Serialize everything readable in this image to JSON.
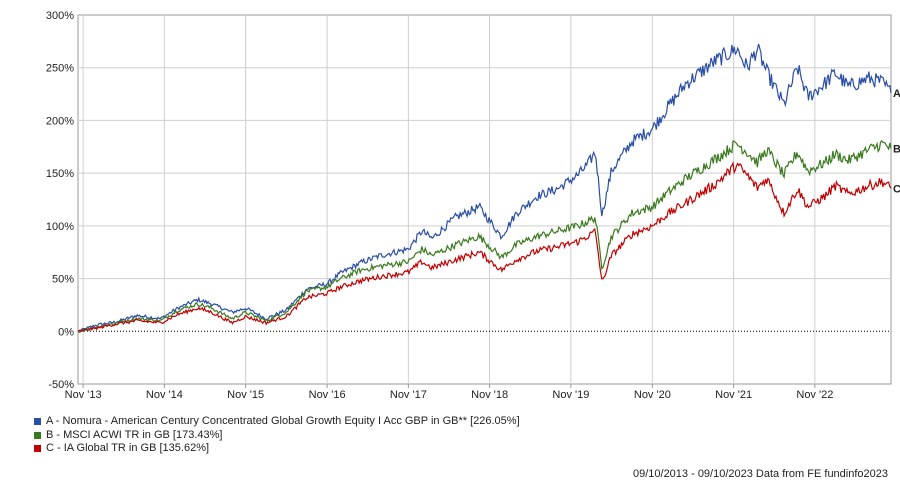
{
  "chart_data": {
    "type": "line",
    "title": "",
    "xlabel": "",
    "ylabel": "",
    "ylim": [
      -50,
      300
    ],
    "y_ticks": [
      "-50%",
      "0%",
      "50%",
      "100%",
      "150%",
      "200%",
      "250%",
      "300%"
    ],
    "y_tick_values": [
      -50,
      0,
      50,
      100,
      150,
      200,
      250,
      300
    ],
    "x_range": [
      "2013-10-09",
      "2023-10-09"
    ],
    "x_ticks": [
      "Nov '13",
      "Nov '14",
      "Nov '15",
      "Nov '16",
      "Nov '17",
      "Nov '18",
      "Nov '19",
      "Nov '20",
      "Nov '21",
      "Nov '22"
    ],
    "x_tick_dates": [
      "2013-11-01",
      "2014-11-01",
      "2015-11-01",
      "2016-11-01",
      "2017-11-01",
      "2018-11-01",
      "2019-11-01",
      "2020-11-01",
      "2021-11-01",
      "2022-11-01"
    ],
    "grid": true,
    "zero_line": "dotted",
    "series": [
      {
        "label": "A",
        "name": "A - Nomura - American Century Concentrated Global Growth Equity I Acc GBP in GB** [226.05%]",
        "color": "#2a4ea6",
        "points": [
          [
            "2013-10-09",
            0
          ],
          [
            "2014-01-01",
            6
          ],
          [
            "2014-04-01",
            9
          ],
          [
            "2014-07-01",
            15
          ],
          [
            "2014-10-15",
            12
          ],
          [
            "2015-01-01",
            22
          ],
          [
            "2015-04-01",
            30
          ],
          [
            "2015-06-01",
            26
          ],
          [
            "2015-09-01",
            18
          ],
          [
            "2015-11-01",
            22
          ],
          [
            "2016-02-01",
            12
          ],
          [
            "2016-05-01",
            20
          ],
          [
            "2016-08-01",
            40
          ],
          [
            "2016-11-01",
            45
          ],
          [
            "2017-01-01",
            55
          ],
          [
            "2017-04-01",
            65
          ],
          [
            "2017-07-01",
            72
          ],
          [
            "2017-11-01",
            78
          ],
          [
            "2018-01-01",
            95
          ],
          [
            "2018-02-15",
            88
          ],
          [
            "2018-06-01",
            108
          ],
          [
            "2018-09-15",
            118
          ],
          [
            "2018-12-24",
            90
          ],
          [
            "2019-03-01",
            112
          ],
          [
            "2019-06-01",
            128
          ],
          [
            "2019-09-01",
            135
          ],
          [
            "2019-12-01",
            148
          ],
          [
            "2020-01-15",
            158
          ],
          [
            "2020-02-19",
            170
          ],
          [
            "2020-03-20",
            110
          ],
          [
            "2020-05-01",
            152
          ],
          [
            "2020-08-01",
            180
          ],
          [
            "2020-11-01",
            192
          ],
          [
            "2021-01-01",
            210
          ],
          [
            "2021-04-01",
            235
          ],
          [
            "2021-08-01",
            255
          ],
          [
            "2021-11-15",
            268
          ],
          [
            "2022-01-01",
            250
          ],
          [
            "2022-02-15",
            268
          ],
          [
            "2022-04-01",
            245
          ],
          [
            "2022-06-15",
            215
          ],
          [
            "2022-08-15",
            250
          ],
          [
            "2022-10-01",
            222
          ],
          [
            "2022-12-15",
            235
          ],
          [
            "2023-02-01",
            245
          ],
          [
            "2023-04-01",
            232
          ],
          [
            "2023-07-01",
            240
          ],
          [
            "2023-09-01",
            236
          ],
          [
            "2023-10-09",
            226.05
          ]
        ]
      },
      {
        "label": "B",
        "name": "B - MSCI ACWI TR in GB [173.43%]",
        "color": "#3a7a1e",
        "points": [
          [
            "2013-10-09",
            0
          ],
          [
            "2014-01-01",
            4
          ],
          [
            "2014-04-01",
            8
          ],
          [
            "2014-07-01",
            12
          ],
          [
            "2014-10-15",
            10
          ],
          [
            "2015-01-01",
            20
          ],
          [
            "2015-04-01",
            26
          ],
          [
            "2015-06-01",
            22
          ],
          [
            "2015-09-01",
            12
          ],
          [
            "2015-11-01",
            18
          ],
          [
            "2016-02-01",
            10
          ],
          [
            "2016-05-01",
            18
          ],
          [
            "2016-08-01",
            38
          ],
          [
            "2016-11-01",
            42
          ],
          [
            "2017-01-01",
            50
          ],
          [
            "2017-04-01",
            58
          ],
          [
            "2017-07-01",
            62
          ],
          [
            "2017-11-01",
            66
          ],
          [
            "2018-01-01",
            78
          ],
          [
            "2018-02-15",
            72
          ],
          [
            "2018-06-01",
            82
          ],
          [
            "2018-09-15",
            90
          ],
          [
            "2018-12-24",
            70
          ],
          [
            "2019-03-01",
            82
          ],
          [
            "2019-06-01",
            90
          ],
          [
            "2019-09-01",
            95
          ],
          [
            "2019-12-01",
            100
          ],
          [
            "2020-01-15",
            104
          ],
          [
            "2020-02-19",
            108
          ],
          [
            "2020-03-20",
            60
          ],
          [
            "2020-05-01",
            90
          ],
          [
            "2020-08-01",
            112
          ],
          [
            "2020-11-01",
            118
          ],
          [
            "2021-01-01",
            130
          ],
          [
            "2021-04-01",
            145
          ],
          [
            "2021-08-01",
            162
          ],
          [
            "2021-11-15",
            178
          ],
          [
            "2022-01-01",
            170
          ],
          [
            "2022-02-15",
            160
          ],
          [
            "2022-04-01",
            172
          ],
          [
            "2022-06-15",
            148
          ],
          [
            "2022-08-15",
            170
          ],
          [
            "2022-10-01",
            152
          ],
          [
            "2022-12-15",
            160
          ],
          [
            "2023-02-01",
            168
          ],
          [
            "2023-04-01",
            162
          ],
          [
            "2023-07-01",
            172
          ],
          [
            "2023-09-01",
            178
          ],
          [
            "2023-10-09",
            173.43
          ]
        ]
      },
      {
        "label": "C",
        "name": "C - IA Global TR in GB [135.62%]",
        "color": "#c00000",
        "points": [
          [
            "2013-10-09",
            0
          ],
          [
            "2014-01-01",
            3
          ],
          [
            "2014-04-01",
            7
          ],
          [
            "2014-07-01",
            10
          ],
          [
            "2014-10-15",
            8
          ],
          [
            "2015-01-01",
            16
          ],
          [
            "2015-04-01",
            22
          ],
          [
            "2015-06-01",
            18
          ],
          [
            "2015-09-01",
            8
          ],
          [
            "2015-11-01",
            14
          ],
          [
            "2016-02-01",
            8
          ],
          [
            "2016-05-01",
            14
          ],
          [
            "2016-08-01",
            32
          ],
          [
            "2016-11-01",
            36
          ],
          [
            "2017-01-01",
            42
          ],
          [
            "2017-04-01",
            48
          ],
          [
            "2017-07-01",
            52
          ],
          [
            "2017-11-01",
            56
          ],
          [
            "2018-01-01",
            66
          ],
          [
            "2018-02-15",
            60
          ],
          [
            "2018-06-01",
            68
          ],
          [
            "2018-09-15",
            75
          ],
          [
            "2018-12-24",
            58
          ],
          [
            "2019-03-01",
            68
          ],
          [
            "2019-06-01",
            76
          ],
          [
            "2019-09-01",
            80
          ],
          [
            "2019-12-01",
            85
          ],
          [
            "2020-01-15",
            90
          ],
          [
            "2020-02-19",
            95
          ],
          [
            "2020-03-20",
            46
          ],
          [
            "2020-05-01",
            72
          ],
          [
            "2020-08-01",
            92
          ],
          [
            "2020-11-01",
            100
          ],
          [
            "2021-01-01",
            110
          ],
          [
            "2021-04-01",
            122
          ],
          [
            "2021-08-01",
            138
          ],
          [
            "2021-11-15",
            158
          ],
          [
            "2022-01-01",
            148
          ],
          [
            "2022-02-15",
            136
          ],
          [
            "2022-04-01",
            145
          ],
          [
            "2022-06-15",
            112
          ],
          [
            "2022-08-15",
            135
          ],
          [
            "2022-10-01",
            118
          ],
          [
            "2022-12-15",
            128
          ],
          [
            "2023-02-01",
            138
          ],
          [
            "2023-04-01",
            130
          ],
          [
            "2023-07-01",
            138
          ],
          [
            "2023-09-01",
            142
          ],
          [
            "2023-10-09",
            135.62
          ]
        ]
      }
    ]
  },
  "legend": [
    {
      "color": "#2a4ea6",
      "text": "A - Nomura - American Century Concentrated Global Growth Equity I Acc GBP in GB** [226.05%]"
    },
    {
      "color": "#3a7a1e",
      "text": "B - MSCI ACWI TR in GB [173.43%]"
    },
    {
      "color": "#c00000",
      "text": "C - IA Global TR in GB [135.62%]"
    }
  ],
  "footer": "09/10/2013 - 09/10/2023 Data from FE fundinfo2023"
}
